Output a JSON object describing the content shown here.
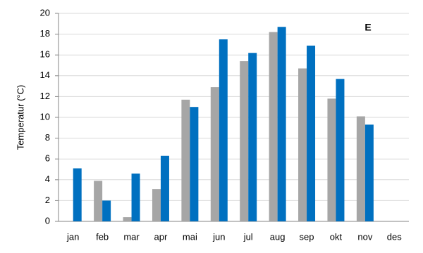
{
  "chart_data": {
    "type": "bar",
    "y_label": "Temperatur (°C)",
    "annotation": "E",
    "categories": [
      "jan",
      "feb",
      "mar",
      "apr",
      "mai",
      "jun",
      "jul",
      "aug",
      "sep",
      "okt",
      "nov",
      "des"
    ],
    "series": [
      {
        "color": "#a6a6a6",
        "values": [
          null,
          3.9,
          0.4,
          3.1,
          11.7,
          12.9,
          15.4,
          18.2,
          14.7,
          11.8,
          10.1,
          null
        ]
      },
      {
        "color": "#0070c0",
        "values": [
          5.1,
          2.0,
          4.6,
          6.3,
          11.0,
          17.5,
          16.2,
          18.7,
          16.9,
          13.7,
          9.3,
          null
        ]
      }
    ],
    "ylim": [
      0,
      20
    ],
    "yticks": [
      0,
      2,
      4,
      6,
      8,
      10,
      12,
      14,
      16,
      18,
      20
    ],
    "grid": true
  }
}
